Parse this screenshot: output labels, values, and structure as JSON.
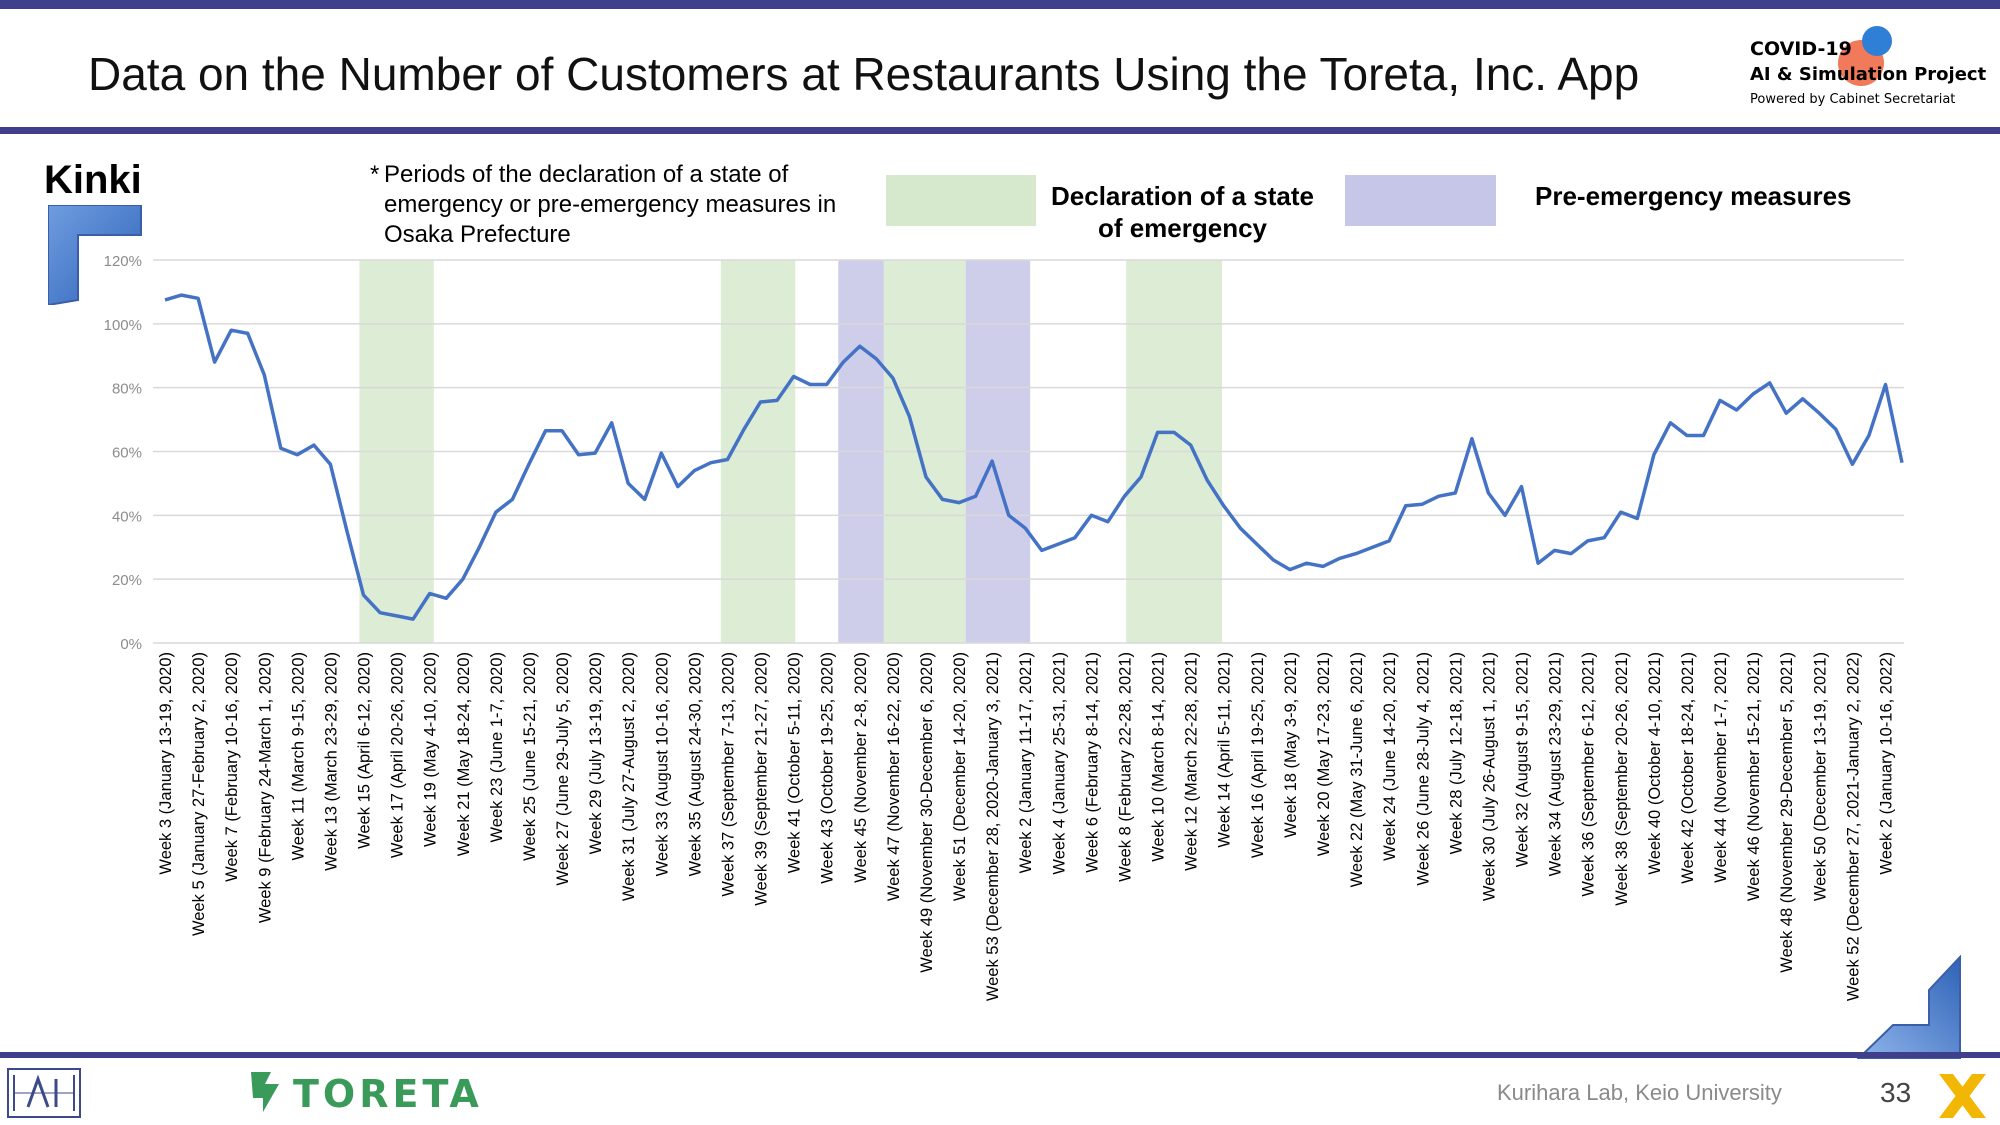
{
  "header": {
    "title": "Data on the Number of Customers at Restaurants Using the Toreta, Inc. App",
    "logo_line1": "COVID-19",
    "logo_line2": "AI & Simulation Project",
    "logo_line3": "Powered by Cabinet Secretariat"
  },
  "region": "Kinki",
  "note": {
    "star": "*",
    "text": "Periods of the declaration of a state of emergency or pre-emergency measures in Osaka Prefecture"
  },
  "legend": {
    "emergency_label": "Declaration of a state of emergency",
    "pre_emergency_label": "Pre-emergency measures",
    "emergency_color": "#d7e9cd",
    "pre_emergency_color": "#c6c6e8"
  },
  "footer": {
    "lab": "Kurihara Lab, Keio University",
    "page": "33",
    "brand": "TORETA"
  },
  "colors": {
    "accent_bar": "#3f3f8c",
    "line": "#4472c4",
    "grid": "#d9d9d9",
    "toreta_green": "#3a9a5a"
  },
  "chart_data": {
    "type": "line",
    "ylim": [
      0,
      120
    ],
    "yticks": [
      "0%",
      "20%",
      "40%",
      "60%",
      "80%",
      "100%",
      "120%"
    ],
    "ytick_values": [
      0,
      20,
      40,
      60,
      80,
      100,
      120
    ],
    "y_unit": "%",
    "x_labels": [
      "Week 3 (January 13-19, 2020)",
      "Week 5 (January 27-February 2, 2020)",
      "Week 7 (February 10-16, 2020)",
      "Week 9 (February 24-March 1, 2020)",
      "Week 11 (March 9-15, 2020)",
      "Week 13 (March 23-29, 2020)",
      "Week 15 (April 6-12, 2020)",
      "Week 17 (April 20-26, 2020)",
      "Week 19 (May 4-10, 2020)",
      "Week 21 (May 18-24, 2020)",
      "Week 23 (June 1-7, 2020)",
      "Week 25 (June 15-21, 2020)",
      "Week 27 (June 29-July 5, 2020)",
      "Week 29 (July 13-19, 2020)",
      "Week 31 (July 27-August 2, 2020)",
      "Week 33 (August 10-16, 2020)",
      "Week 35 (August 24-30, 2020)",
      "Week 37 (September 7-13, 2020)",
      "Week 39 (September 21-27, 2020)",
      "Week 41 (October 5-11, 2020)",
      "Week 43 (October 19-25, 2020)",
      "Week 45 (November 2-8, 2020)",
      "Week 47 (November 16-22, 2020)",
      "Week 49 (November 30-December 6, 2020)",
      "Week 51 (December 14-20, 2020)",
      "Week 53 (December 28, 2020-January 3, 2021)",
      "Week 2 (January 11-17, 2021)",
      "Week 4 (January 25-31, 2021)",
      "Week 6 (February 8-14, 2021)",
      "Week 8 (February 22-28, 2021)",
      "Week 10 (March 8-14, 2021)",
      "Week 12 (March 22-28, 2021)",
      "Week 14 (April 5-11, 2021)",
      "Week 16 (April 19-25, 2021)",
      "Week 18 (May 3-9, 2021)",
      "Week 20 (May 17-23, 2021)",
      "Week 22 (May 31-June 6, 2021)",
      "Week 24 (June 14-20, 2021)",
      "Week 26 (June 28-July 4, 2021)",
      "Week 28 (July 12-18, 2021)",
      "Week 30 (July 26-August 1, 2021)",
      "Week 32 (August 9-15, 2021)",
      "Week 34 (August 23-29, 2021)",
      "Week 36 (September 6-12, 2021)",
      "Week 38 (September 20-26, 2021)",
      "Week 40 (October 4-10, 2021)",
      "Week 42 (October 18-24, 2021)",
      "Week 44 (November 1-7, 2021)",
      "Week 46 (November 15-21, 2021)",
      "Week 48 (November 29-December 5, 2021)",
      "Week 50 (December 13-19, 2021)",
      "Week 52 (December 27, 2021-January 2, 2022)",
      "Week 2 (January 10-16, 2022)"
    ],
    "values": [
      107.5,
      109,
      108,
      88,
      98,
      97,
      84,
      61,
      59,
      62,
      56,
      35,
      15,
      9.5,
      8.5,
      7.5,
      15.5,
      14,
      20,
      30,
      41,
      45,
      56,
      66.5,
      66.5,
      59,
      59.5,
      69,
      50,
      45,
      59.5,
      49,
      54,
      56.5,
      57.5,
      67,
      75.5,
      76,
      83.5,
      81,
      81,
      88,
      93,
      89,
      83,
      71,
      52,
      45,
      44,
      46,
      57,
      40,
      36,
      29,
      31,
      33,
      40,
      38,
      46,
      52,
      66,
      66,
      62,
      51,
      43,
      36,
      31,
      26,
      23,
      25,
      24,
      26.5,
      28,
      30,
      32,
      43,
      43.5,
      46,
      47,
      64,
      47,
      40,
      49,
      25,
      29,
      28,
      32,
      33,
      41,
      39,
      59,
      69,
      65,
      65,
      76,
      73,
      78,
      81.5,
      72,
      76.5,
      72,
      67,
      56,
      65,
      81,
      56.5
    ],
    "emergency_periods": [
      [
        11.75,
        16.25
      ],
      [
        33.6,
        38.1
      ],
      [
        43.45,
        48.4
      ],
      [
        58.1,
        63.9
      ]
    ],
    "pre_emergency_periods": [
      [
        40.7,
        43.45
      ],
      [
        48.4,
        52.3
      ]
    ]
  }
}
